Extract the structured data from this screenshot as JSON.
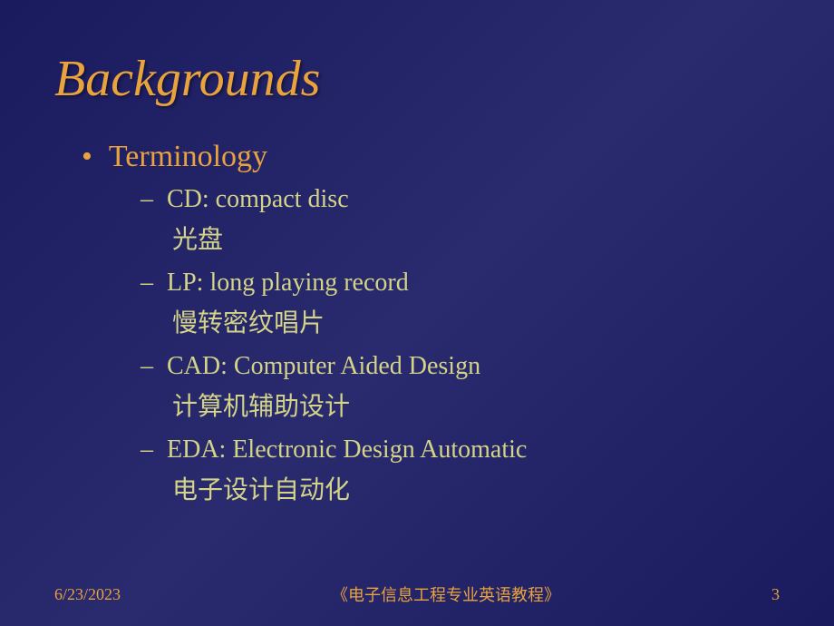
{
  "slide": {
    "title": "Backgrounds",
    "background_gradient": [
      "#1a1a5e",
      "#2a2a6e",
      "#1a1a5e"
    ],
    "title_color": "#e8a33d",
    "title_fontsize": 56,
    "title_italic": true,
    "bullet1_color": "#e8a33d",
    "bullet1_fontsize": 34,
    "bullet2_color": "#d4d488",
    "bullet2_fontsize": 28,
    "content": {
      "level1_marker": "•",
      "level1_text": "Terminology",
      "level2_marker": "–",
      "items": [
        {
          "term": "CD: compact disc",
          "translation": "光盘"
        },
        {
          "term": "LP: long playing record",
          "translation": "慢转密纹唱片"
        },
        {
          "term": "CAD: Computer Aided Design",
          "translation": "计算机辅助设计"
        },
        {
          "term": "EDA: Electronic Design Automatic",
          "translation": "电子设计自动化"
        }
      ]
    }
  },
  "footer": {
    "date": "6/23/2023",
    "title": "《电子信息工程专业英语教程》",
    "page": "3",
    "color": "#e8a33d",
    "fontsize": 18
  }
}
